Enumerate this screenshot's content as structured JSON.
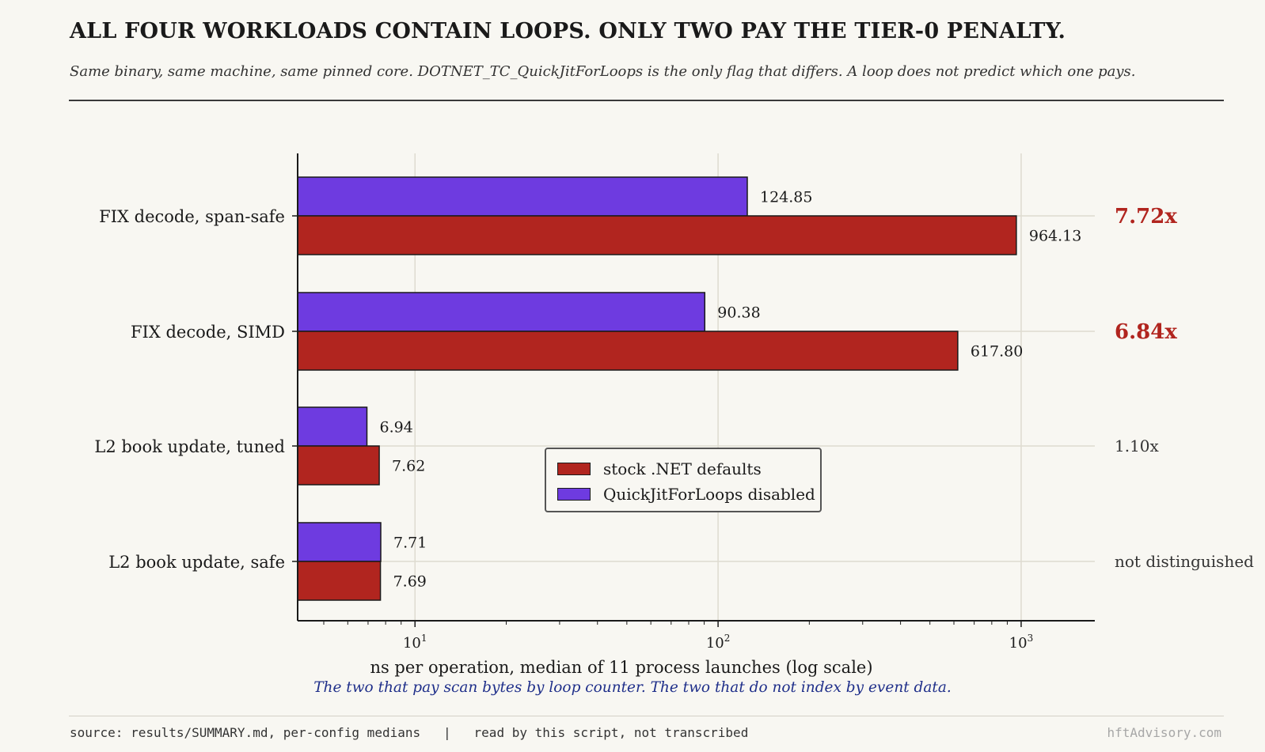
{
  "header": {
    "title": "ALL FOUR WORKLOADS CONTAIN LOOPS.  ONLY TWO PAY THE TIER-0 PENALTY.",
    "subtitle": "Same binary, same machine, same pinned core. DOTNET_TC_QuickJitForLoops is the only flag that differs. A loop does not predict which one pays."
  },
  "footer": {
    "source": "source: results/SUMMARY.md, per-config medians   |   read by this script, not transcribed",
    "brand": "hftAdvisory.com"
  },
  "chart_data": {
    "type": "bar",
    "orientation": "horizontal",
    "categories": [
      "FIX decode, span-safe",
      "FIX decode, SIMD",
      "L2 book update, tuned",
      "L2 book update, safe"
    ],
    "series": [
      {
        "name": "QuickJitForLoops disabled",
        "color": "#6e3be0",
        "values": [
          124.85,
          90.38,
          6.94,
          7.71
        ],
        "labels": [
          "124.85",
          "90.38",
          "6.94",
          "7.71"
        ]
      },
      {
        "name": "stock .NET defaults",
        "color": "#b1251f",
        "values": [
          964.13,
          617.8,
          7.62,
          7.69
        ],
        "labels": [
          "964.13",
          "617.80",
          "7.62",
          "7.69"
        ]
      }
    ],
    "ratios": [
      {
        "text": "7.72x",
        "emphasis": true,
        "color": "#b1251f"
      },
      {
        "text": "6.84x",
        "emphasis": true,
        "color": "#b1251f"
      },
      {
        "text": "1.10x",
        "emphasis": false,
        "color": "#333333"
      },
      {
        "text": "not distinguished",
        "emphasis": false,
        "color": "#333333"
      }
    ],
    "xscale": "log",
    "xlim": [
      4.1,
      1750
    ],
    "xticks": [
      {
        "base": "10",
        "exp": "1",
        "value": 10
      },
      {
        "base": "10",
        "exp": "2",
        "value": 100
      },
      {
        "base": "10",
        "exp": "3",
        "value": 1000
      }
    ],
    "xlabel": "ns per operation, median of 11 process launches (log scale)",
    "annotation": "The two that pay scan bytes by loop counter. The two that do not index by event data.",
    "annotation_color": "#1f2f8a",
    "grid": true,
    "legend": {
      "placement": "center",
      "entries": [
        {
          "label": "stock .NET defaults",
          "color": "#b1251f"
        },
        {
          "label": "QuickJitForLoops disabled",
          "color": "#6e3be0"
        }
      ]
    }
  }
}
